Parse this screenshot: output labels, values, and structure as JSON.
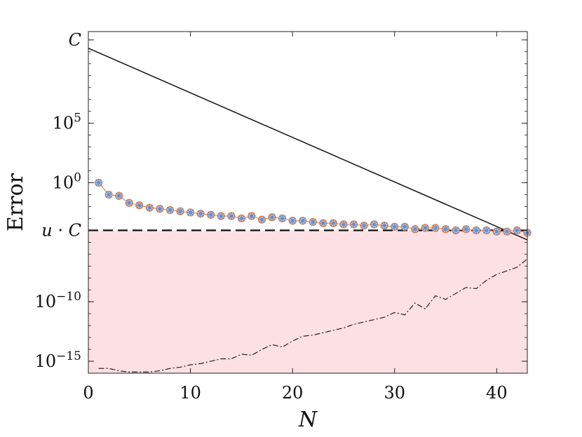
{
  "chart_data": {
    "type": "line",
    "xlabel": "N",
    "ylabel": "Error",
    "xlim": [
      0,
      43
    ],
    "ylim_log10": [
      -16,
      12.7
    ],
    "y_scale": "log",
    "grid": false,
    "x_ticks": [
      0,
      10,
      20,
      30,
      40
    ],
    "y_ticks": [
      {
        "log10": 12,
        "base": "C",
        "sup": ""
      },
      {
        "log10": 5,
        "base": "10",
        "sup": "5"
      },
      {
        "log10": 0,
        "base": "10",
        "sup": "0"
      },
      {
        "log10": -4,
        "base": "u · C",
        "sup": ""
      },
      {
        "log10": -10,
        "base": "10",
        "sup": "−10"
      },
      {
        "log10": -15,
        "base": "10",
        "sup": "−15"
      }
    ],
    "shaded_region": {
      "from_log10": -16,
      "to_log10": -4,
      "color": "#fde0e3"
    },
    "colors": {
      "shade": "#fde0e3",
      "markers_orange": "#e07a4a",
      "markers_blue": "#5b8fd1",
      "lines": "#111111"
    },
    "series": [
      {
        "style": "solid",
        "x": [
          0,
          43
        ],
        "log10_y": [
          11.3,
          -4.8
        ]
      },
      {
        "style": "dashed",
        "x": [
          0,
          43
        ],
        "log10_y": [
          -4,
          -4
        ]
      },
      {
        "style": "markers",
        "x": [
          1,
          2,
          3,
          4,
          5,
          6,
          7,
          8,
          9,
          10,
          11,
          12,
          13,
          14,
          15,
          16,
          17,
          18,
          19,
          20,
          21,
          22,
          23,
          24,
          25,
          26,
          27,
          28,
          29,
          30,
          31,
          32,
          33,
          34,
          35,
          36,
          37,
          38,
          39,
          40,
          41,
          42,
          43
        ],
        "log10_y": [
          0.0,
          -1.0,
          -1.1,
          -1.7,
          -1.9,
          -2.1,
          -2.2,
          -2.3,
          -2.4,
          -2.5,
          -2.6,
          -2.7,
          -2.8,
          -2.8,
          -3.0,
          -2.8,
          -3.1,
          -2.9,
          -3.0,
          -3.2,
          -3.2,
          -3.3,
          -3.4,
          -3.4,
          -3.5,
          -3.5,
          -3.6,
          -3.5,
          -3.6,
          -3.7,
          -3.7,
          -3.9,
          -3.8,
          -3.8,
          -3.9,
          -4.0,
          -3.9,
          -4.0,
          -4.0,
          -4.1,
          -4.1,
          -4.0,
          -4.2
        ]
      },
      {
        "style": "dashdot",
        "x": [
          1,
          2,
          3,
          4,
          5,
          6,
          7,
          8,
          9,
          10,
          11,
          12,
          13,
          14,
          15,
          16,
          17,
          18,
          19,
          20,
          21,
          22,
          23,
          24,
          25,
          26,
          27,
          28,
          29,
          30,
          31,
          32,
          33,
          34,
          35,
          36,
          37,
          38,
          39,
          40,
          41,
          42,
          43
        ],
        "log10_y": [
          -15.6,
          -15.6,
          -15.8,
          -15.9,
          -15.9,
          -15.9,
          -15.8,
          -15.6,
          -15.5,
          -15.3,
          -15.2,
          -15.0,
          -14.8,
          -14.8,
          -14.4,
          -14.5,
          -14.0,
          -13.6,
          -13.8,
          -13.3,
          -12.9,
          -12.8,
          -12.6,
          -12.4,
          -12.2,
          -11.9,
          -11.7,
          -11.5,
          -11.3,
          -10.9,
          -11.1,
          -10.1,
          -10.6,
          -9.5,
          -9.8,
          -9.3,
          -8.8,
          -8.9,
          -8.2,
          -7.7,
          -7.4,
          -7.1,
          -6.4
        ]
      }
    ]
  }
}
